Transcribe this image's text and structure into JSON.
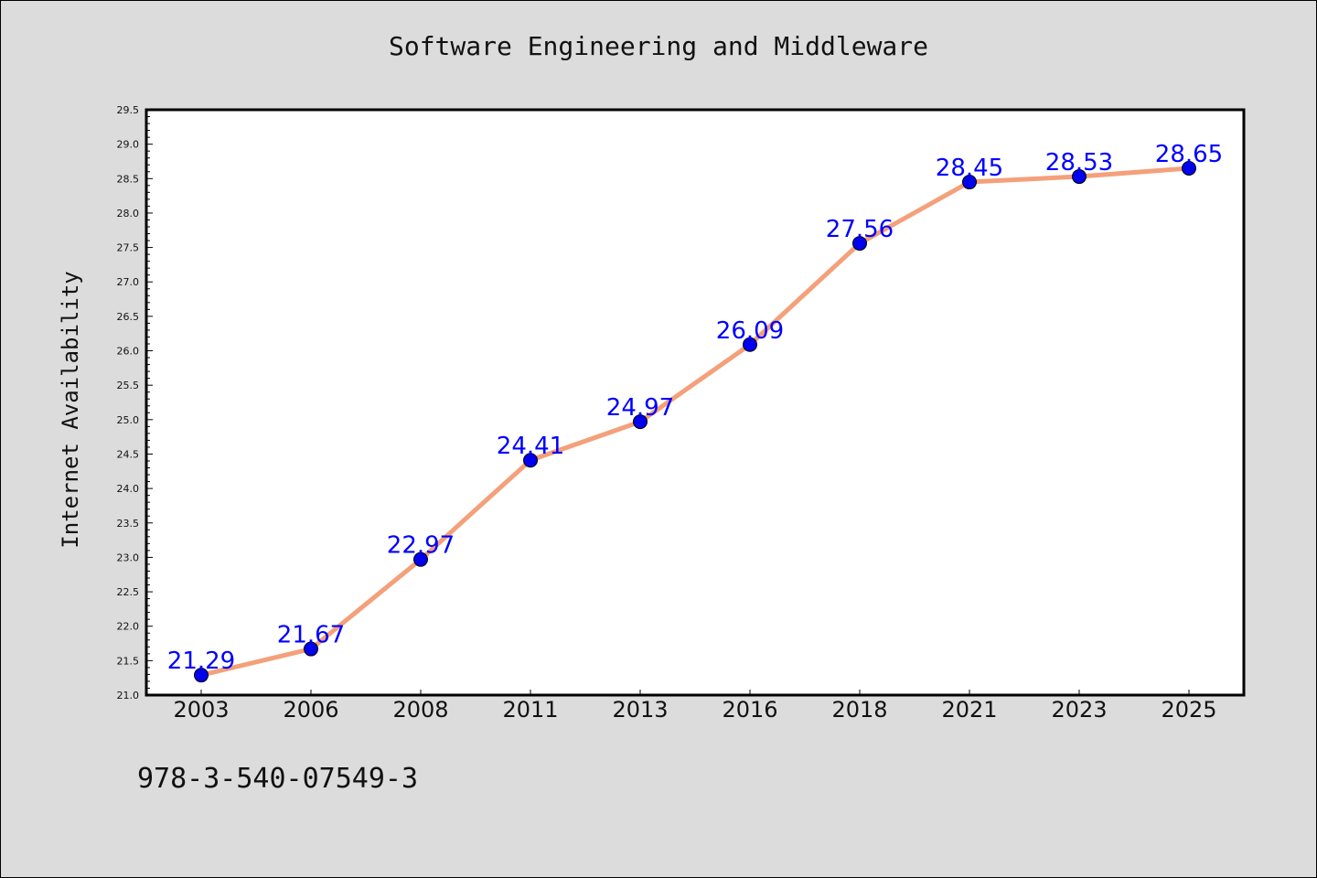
{
  "chart_data": {
    "type": "line",
    "title": "Software Engineering and Middleware",
    "xlabel": "",
    "ylabel": "Internet Availability",
    "categories": [
      "2003",
      "2006",
      "2008",
      "2011",
      "2013",
      "2016",
      "2018",
      "2021",
      "2023",
      "2025"
    ],
    "series": [
      {
        "values": [
          21.29,
          21.67,
          22.97,
          24.41,
          24.97,
          26.09,
          27.56,
          28.45,
          28.53,
          28.65
        ],
        "line_color": "#f4a07a",
        "marker_color": "#0000ee"
      }
    ],
    "data_labels": [
      "21.29",
      "21.67",
      "22.97",
      "24.41",
      "24.97",
      "26.09",
      "27.56",
      "28.45",
      "28.53",
      "28.65"
    ],
    "ylim": [
      21.0,
      29.5
    ],
    "yticks": [
      "21.0",
      "21.5",
      "22.0",
      "22.5",
      "23.0",
      "23.5",
      "24.0",
      "24.5",
      "25.0",
      "25.5",
      "26.0",
      "26.5",
      "27.0",
      "27.5",
      "28.0",
      "28.5",
      "29.0",
      "29.5"
    ],
    "grid": false,
    "legend": "none",
    "label_color": "#0000ff"
  },
  "footer": {
    "isbn": "978-3-540-07549-3"
  }
}
